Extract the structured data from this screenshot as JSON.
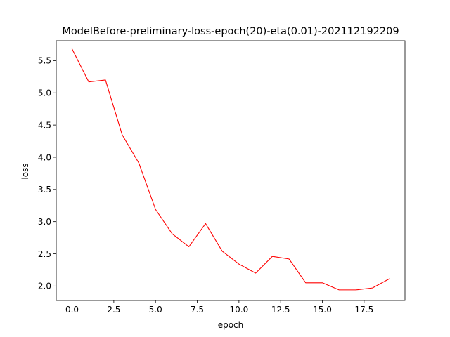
{
  "chart_data": {
    "type": "line",
    "title": "ModelBefore-preliminary-loss-epoch(20)-eta(0.01)-202112192209",
    "xlabel": "epoch",
    "ylabel": "loss",
    "xlim": [
      -0.95,
      19.95
    ],
    "ylim": [
      1.775,
      5.81
    ],
    "xticks": [
      0.0,
      2.5,
      5.0,
      7.5,
      10.0,
      12.5,
      15.0,
      17.5
    ],
    "xtick_labels": [
      "0.0",
      "2.5",
      "5.0",
      "7.5",
      "10.0",
      "12.5",
      "15.0",
      "17.5"
    ],
    "yticks": [
      2.0,
      2.5,
      3.0,
      3.5,
      4.0,
      4.5,
      5.0,
      5.5
    ],
    "ytick_labels": [
      "2.0",
      "2.5",
      "3.0",
      "3.5",
      "4.0",
      "4.5",
      "5.0",
      "5.5"
    ],
    "grid": false,
    "series": [
      {
        "color": "#ff0000",
        "x": [
          0,
          1,
          2,
          3,
          4,
          5,
          6,
          7,
          8,
          9,
          10,
          11,
          12,
          13,
          14,
          15,
          16,
          17,
          18,
          19
        ],
        "values": [
          5.68,
          5.17,
          5.2,
          4.35,
          3.91,
          3.19,
          2.81,
          2.61,
          2.97,
          2.54,
          2.34,
          2.2,
          2.46,
          2.42,
          2.05,
          2.05,
          1.94,
          1.94,
          1.97,
          2.11
        ]
      }
    ]
  }
}
